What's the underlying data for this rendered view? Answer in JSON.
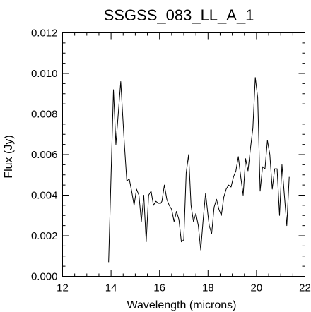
{
  "chart_data": {
    "type": "line",
    "title": "SSGSS_083_LL_A_1",
    "xlabel": "Wavelength (microns)",
    "ylabel": "Flux (Jy)",
    "xlim": [
      12,
      22
    ],
    "ylim": [
      0.0,
      0.012
    ],
    "x_ticks": [
      12,
      14,
      16,
      18,
      20,
      22
    ],
    "x_tick_labels": [
      "12",
      "14",
      "16",
      "18",
      "20",
      "22"
    ],
    "y_ticks": [
      0.0,
      0.002,
      0.004,
      0.006,
      0.008,
      0.01,
      0.012
    ],
    "y_tick_labels": [
      "0.000",
      "0.002",
      "0.004",
      "0.006",
      "0.008",
      "0.010",
      "0.012"
    ],
    "grid": false,
    "series": [
      {
        "x": [
          13.9,
          14.1,
          14.2,
          14.4,
          14.55,
          14.65,
          14.75,
          14.85,
          14.95,
          15.05,
          15.15,
          15.25,
          15.35,
          15.45,
          15.55,
          15.65,
          15.75,
          15.85,
          15.95,
          16.05,
          16.1,
          16.2,
          16.3,
          16.4,
          16.5,
          16.6,
          16.7,
          16.8,
          16.9,
          17.0,
          17.1,
          17.2,
          17.3,
          17.4,
          17.5,
          17.6,
          17.7,
          17.8,
          17.9,
          18.0,
          18.05,
          18.15,
          18.25,
          18.35,
          18.45,
          18.55,
          18.65,
          18.75,
          18.85,
          18.95,
          19.05,
          19.15,
          19.25,
          19.35,
          19.45,
          19.55,
          19.65,
          19.75,
          19.85,
          19.95,
          20.05,
          20.15,
          20.25,
          20.35,
          20.45,
          20.55,
          20.65,
          20.75,
          20.85,
          20.95,
          21.05,
          21.15,
          21.25,
          21.35
        ],
        "y": [
          0.0007,
          0.0092,
          0.0065,
          0.0096,
          0.0065,
          0.0047,
          0.0048,
          0.0042,
          0.0035,
          0.0043,
          0.004,
          0.0027,
          0.004,
          0.0017,
          0.004,
          0.0042,
          0.0035,
          0.0037,
          0.0036,
          0.0036,
          0.0037,
          0.0045,
          0.0038,
          0.0035,
          0.0033,
          0.0027,
          0.0032,
          0.0028,
          0.0017,
          0.0018,
          0.0051,
          0.006,
          0.0035,
          0.0027,
          0.0031,
          0.0025,
          0.0013,
          0.0028,
          0.0041,
          0.003,
          0.0025,
          0.0021,
          0.0034,
          0.0038,
          0.0033,
          0.003,
          0.0039,
          0.0043,
          0.0045,
          0.0044,
          0.0049,
          0.0052,
          0.0059,
          0.0049,
          0.004,
          0.0058,
          0.0052,
          0.0063,
          0.0073,
          0.0098,
          0.0088,
          0.0042,
          0.0054,
          0.0053,
          0.0067,
          0.006,
          0.0043,
          0.0053,
          0.0053,
          0.003,
          0.0055,
          0.004,
          0.0025,
          0.0049
        ]
      }
    ]
  }
}
